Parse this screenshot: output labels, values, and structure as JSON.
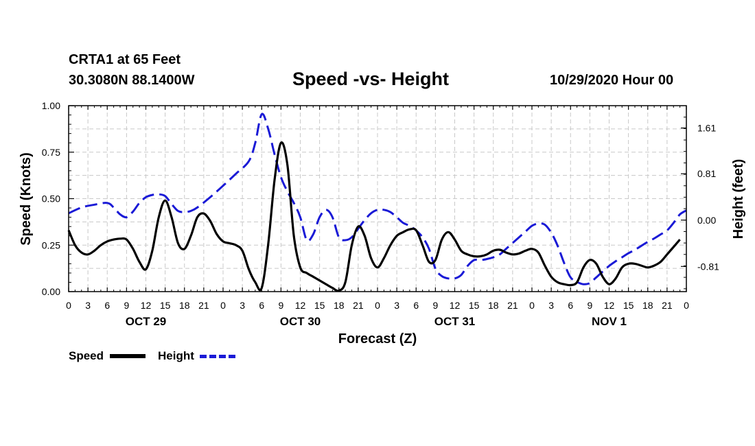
{
  "header": {
    "station": "CRTA1 at 65 Feet",
    "coords": "30.3080N 88.1400W",
    "title": "Speed -vs- Height",
    "datetime": "10/29/2020 Hour 00"
  },
  "legend": {
    "speed_label": "Speed",
    "height_label": "Height"
  },
  "colors": {
    "speed": "#000000",
    "height": "#1a1ad6",
    "grid": "#c8c8c8"
  },
  "chart_data": {
    "type": "line",
    "xlabel": "Forecast (Z)",
    "ylabel_left": "Speed (Knots)",
    "ylabel_right": "Height (feet)",
    "x_range_hours": [
      0,
      96
    ],
    "x_tick_step_hours": 3,
    "x_tick_labels": [
      "0",
      "3",
      "6",
      "9",
      "12",
      "15",
      "18",
      "21",
      "0",
      "3",
      "6",
      "9",
      "12",
      "15",
      "18",
      "21",
      "0",
      "3",
      "6",
      "9",
      "12",
      "15",
      "18",
      "21",
      "0",
      "3",
      "6",
      "9",
      "12",
      "15",
      "18",
      "21",
      "0"
    ],
    "date_labels": [
      {
        "label": "OCT 29",
        "hour": 12
      },
      {
        "label": "OCT 30",
        "hour": 36
      },
      {
        "label": "OCT 31",
        "hour": 60
      },
      {
        "label": "NOV 1",
        "hour": 84
      }
    ],
    "left_axis": {
      "range": [
        0,
        1
      ],
      "ticks": [
        "0.00",
        "0.25",
        "0.50",
        "0.75",
        "1.00"
      ],
      "tick_values": [
        0,
        0.25,
        0.5,
        0.75,
        1.0
      ]
    },
    "right_axis": {
      "range": [
        -1.25,
        2.0
      ],
      "ticks": [
        "-0.81",
        "0.00",
        "0.81",
        "1.61"
      ],
      "tick_values": [
        -0.81,
        0.0,
        0.81,
        1.61
      ]
    },
    "grid": true,
    "series": [
      {
        "name": "Speed",
        "axis": "left",
        "style": "solid",
        "points": [
          [
            0,
            0.33
          ],
          [
            1,
            0.25
          ],
          [
            2,
            0.21
          ],
          [
            3,
            0.2
          ],
          [
            4,
            0.22
          ],
          [
            5,
            0.25
          ],
          [
            6,
            0.27
          ],
          [
            7,
            0.28
          ],
          [
            8,
            0.285
          ],
          [
            9,
            0.28
          ],
          [
            10,
            0.23
          ],
          [
            11,
            0.16
          ],
          [
            12,
            0.12
          ],
          [
            13,
            0.22
          ],
          [
            14,
            0.4
          ],
          [
            15,
            0.49
          ],
          [
            16,
            0.4
          ],
          [
            17,
            0.26
          ],
          [
            18,
            0.23
          ],
          [
            19,
            0.3
          ],
          [
            20,
            0.4
          ],
          [
            21,
            0.42
          ],
          [
            22,
            0.38
          ],
          [
            23,
            0.31
          ],
          [
            24,
            0.27
          ],
          [
            25,
            0.26
          ],
          [
            26,
            0.25
          ],
          [
            27,
            0.22
          ],
          [
            28,
            0.12
          ],
          [
            29,
            0.05
          ],
          [
            30,
            0.02
          ],
          [
            31,
            0.25
          ],
          [
            32,
            0.6
          ],
          [
            33,
            0.8
          ],
          [
            34,
            0.68
          ],
          [
            35,
            0.3
          ],
          [
            36,
            0.13
          ],
          [
            37,
            0.1
          ],
          [
            38,
            0.08
          ],
          [
            39,
            0.06
          ],
          [
            40,
            0.04
          ],
          [
            41,
            0.02
          ],
          [
            42,
            0.005
          ],
          [
            43,
            0.05
          ],
          [
            44,
            0.25
          ],
          [
            45,
            0.35
          ],
          [
            46,
            0.3
          ],
          [
            47,
            0.18
          ],
          [
            48,
            0.13
          ],
          [
            49,
            0.18
          ],
          [
            50,
            0.25
          ],
          [
            51,
            0.3
          ],
          [
            52,
            0.32
          ],
          [
            53,
            0.335
          ],
          [
            54,
            0.33
          ],
          [
            55,
            0.25
          ],
          [
            56,
            0.16
          ],
          [
            57,
            0.17
          ],
          [
            58,
            0.28
          ],
          [
            59,
            0.32
          ],
          [
            60,
            0.28
          ],
          [
            61,
            0.22
          ],
          [
            62,
            0.2
          ],
          [
            63,
            0.19
          ],
          [
            64,
            0.19
          ],
          [
            65,
            0.2
          ],
          [
            66,
            0.22
          ],
          [
            67,
            0.225
          ],
          [
            68,
            0.21
          ],
          [
            69,
            0.2
          ],
          [
            70,
            0.205
          ],
          [
            71,
            0.22
          ],
          [
            72,
            0.23
          ],
          [
            73,
            0.21
          ],
          [
            74,
            0.14
          ],
          [
            75,
            0.08
          ],
          [
            76,
            0.05
          ],
          [
            77,
            0.04
          ],
          [
            78,
            0.035
          ],
          [
            79,
            0.05
          ],
          [
            80,
            0.13
          ],
          [
            81,
            0.17
          ],
          [
            82,
            0.15
          ],
          [
            83,
            0.08
          ],
          [
            84,
            0.04
          ],
          [
            85,
            0.07
          ],
          [
            86,
            0.13
          ],
          [
            87,
            0.15
          ],
          [
            88,
            0.15
          ],
          [
            89,
            0.14
          ],
          [
            90,
            0.13
          ],
          [
            91,
            0.14
          ],
          [
            92,
            0.16
          ],
          [
            93,
            0.2
          ],
          [
            94,
            0.24
          ],
          [
            95,
            0.28
          ]
        ]
      },
      {
        "name": "Height",
        "axis": "right",
        "style": "dashed",
        "points": [
          [
            0,
            0.12
          ],
          [
            2,
            0.22
          ],
          [
            4,
            0.27
          ],
          [
            6,
            0.3
          ],
          [
            7,
            0.22
          ],
          [
            8,
            0.1
          ],
          [
            9,
            0.05
          ],
          [
            10,
            0.15
          ],
          [
            11,
            0.3
          ],
          [
            12,
            0.4
          ],
          [
            13,
            0.44
          ],
          [
            14,
            0.45
          ],
          [
            15,
            0.42
          ],
          [
            16,
            0.28
          ],
          [
            17,
            0.16
          ],
          [
            18,
            0.14
          ],
          [
            19,
            0.16
          ],
          [
            20,
            0.22
          ],
          [
            22,
            0.4
          ],
          [
            24,
            0.6
          ],
          [
            26,
            0.81
          ],
          [
            28,
            1.03
          ],
          [
            29,
            1.35
          ],
          [
            30,
            1.85
          ],
          [
            31,
            1.6
          ],
          [
            32,
            1.15
          ],
          [
            33,
            0.75
          ],
          [
            34,
            0.5
          ],
          [
            35,
            0.3
          ],
          [
            36,
            0.05
          ],
          [
            37,
            -0.35
          ],
          [
            38,
            -0.25
          ],
          [
            39,
            0.05
          ],
          [
            40,
            0.18
          ],
          [
            41,
            0.05
          ],
          [
            42,
            -0.3
          ],
          [
            43,
            -0.35
          ],
          [
            44,
            -0.3
          ],
          [
            45,
            -0.15
          ],
          [
            46,
            0.0
          ],
          [
            47,
            0.12
          ],
          [
            48,
            0.18
          ],
          [
            49,
            0.18
          ],
          [
            50,
            0.14
          ],
          [
            51,
            0.05
          ],
          [
            52,
            -0.05
          ],
          [
            53,
            -0.1
          ],
          [
            54,
            -0.18
          ],
          [
            55,
            -0.3
          ],
          [
            56,
            -0.5
          ],
          [
            57,
            -0.85
          ],
          [
            58,
            -0.98
          ],
          [
            59,
            -1.02
          ],
          [
            60,
            -1.02
          ],
          [
            61,
            -0.96
          ],
          [
            62,
            -0.8
          ],
          [
            63,
            -0.7
          ],
          [
            64,
            -0.7
          ],
          [
            65,
            -0.68
          ],
          [
            66,
            -0.65
          ],
          [
            67,
            -0.6
          ],
          [
            68,
            -0.5
          ],
          [
            69,
            -0.4
          ],
          [
            70,
            -0.3
          ],
          [
            71,
            -0.2
          ],
          [
            72,
            -0.1
          ],
          [
            73,
            -0.06
          ],
          [
            74,
            -0.08
          ],
          [
            75,
            -0.22
          ],
          [
            76,
            -0.45
          ],
          [
            77,
            -0.75
          ],
          [
            78,
            -1.0
          ],
          [
            79,
            -1.08
          ],
          [
            80,
            -1.12
          ],
          [
            81,
            -1.1
          ],
          [
            82,
            -1.0
          ],
          [
            83,
            -0.9
          ],
          [
            84,
            -0.8
          ],
          [
            85,
            -0.72
          ],
          [
            86,
            -0.65
          ],
          [
            87,
            -0.58
          ],
          [
            88,
            -0.52
          ],
          [
            89,
            -0.45
          ],
          [
            90,
            -0.38
          ],
          [
            91,
            -0.32
          ],
          [
            92,
            -0.25
          ],
          [
            93,
            -0.18
          ],
          [
            94,
            -0.05
          ],
          [
            95,
            0.1
          ],
          [
            96,
            0.17
          ]
        ]
      }
    ]
  }
}
